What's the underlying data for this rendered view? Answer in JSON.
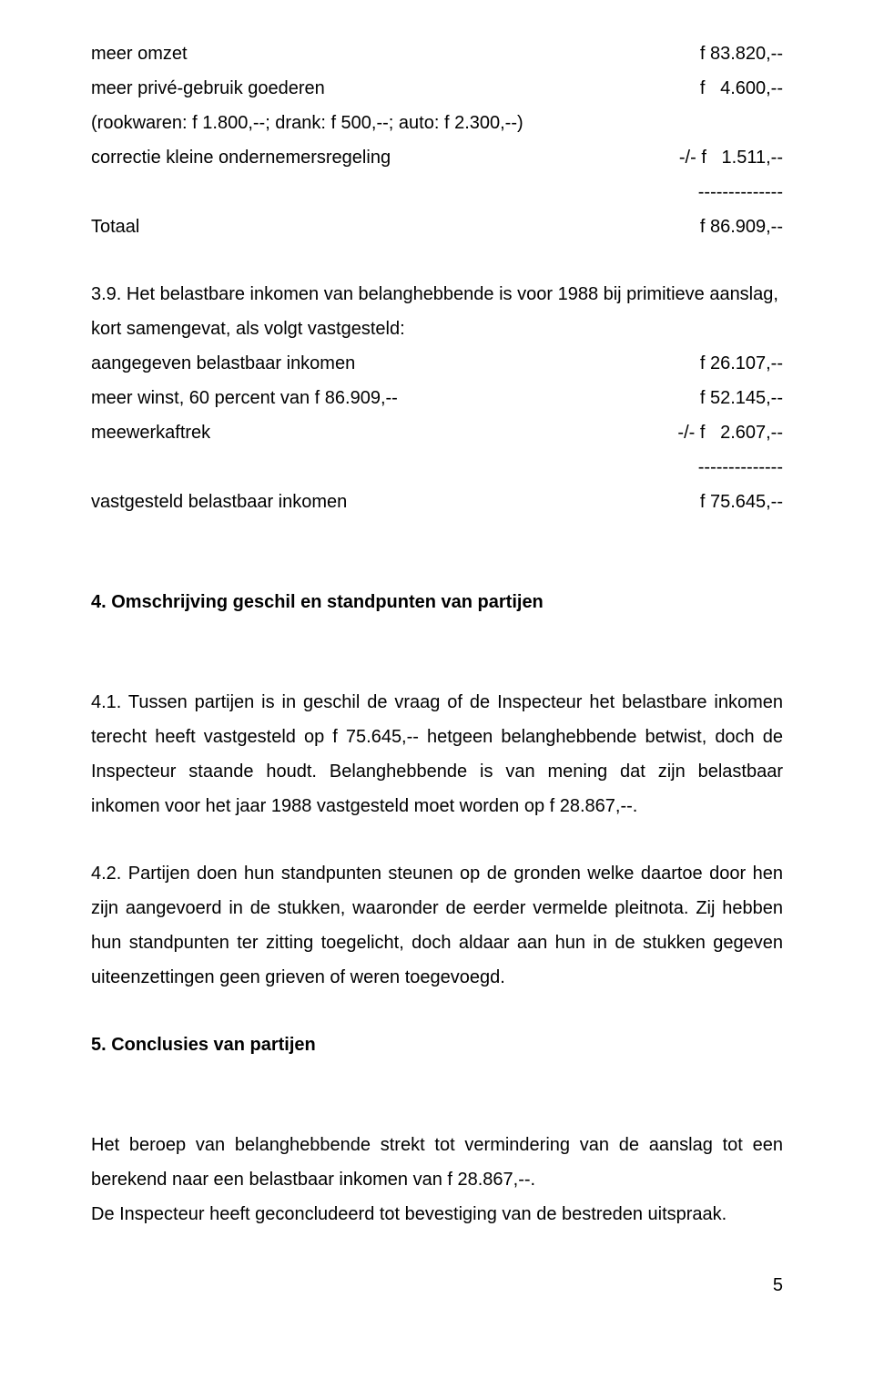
{
  "table1": {
    "rows": [
      {
        "left": "meer omzet",
        "right": "f 83.820,--"
      },
      {
        "left": "meer privé-gebruik goederen",
        "right": "f   4.600,--"
      },
      {
        "left": "(rookwaren: f 1.800,--; drank: f 500,--; auto: f 2.300,--)",
        "right": ""
      },
      {
        "left": "correctie kleine ondernemersregeling",
        "right": "-/- f   1.511,--"
      }
    ],
    "dashes": "--------------",
    "total": {
      "left": "Totaal",
      "right": "f 86.909,--"
    }
  },
  "para39": "3.9. Het belastbare inkomen van belanghebbende is voor 1988 bij primitieve aanslag, kort samengevat, als volgt vastgesteld:",
  "table2": {
    "rows": [
      {
        "left": "aangegeven belastbaar inkomen",
        "right": "f 26.107,--"
      },
      {
        "left": "meer winst, 60 percent van f 86.909,--",
        "right": "f 52.145,--"
      },
      {
        "left": "meewerkaftrek",
        "right": "-/- f   2.607,--"
      }
    ],
    "dashes": "--------------",
    "total": {
      "left": "vastgesteld belastbaar inkomen",
      "right": "f 75.645,--"
    }
  },
  "heading4": "4. Omschrijving geschil en standpunten van partijen",
  "para41": "4.1. Tussen partijen is in geschil de vraag of de Inspecteur het belastbare inkomen terecht heeft vastgesteld op f 75.645,-- hetgeen belanghebbende betwist, doch de Inspecteur staande houdt. Belanghebbende is van mening dat zijn belastbaar inkomen voor het jaar 1988 vastgesteld moet worden op f 28.867,--.",
  "para42": "4.2. Partijen doen hun standpunten steunen op de gronden welke daartoe door hen zijn aangevoerd in de stukken, waaronder de eerder vermelde pleitnota. Zij hebben hun standpunten ter zitting toegelicht, doch aldaar aan hun in de stukken gegeven uiteenzettingen geen grieven of weren toegevoegd.",
  "heading5": "5. Conclusies van partijen",
  "para5a": "Het beroep van belanghebbende strekt tot vermindering van de aanslag tot een berekend naar een belastbaar inkomen van f 28.867,--.",
  "para5b": "De Inspecteur heeft geconcludeerd tot bevestiging van de bestreden uitspraak.",
  "pagenum": "5"
}
